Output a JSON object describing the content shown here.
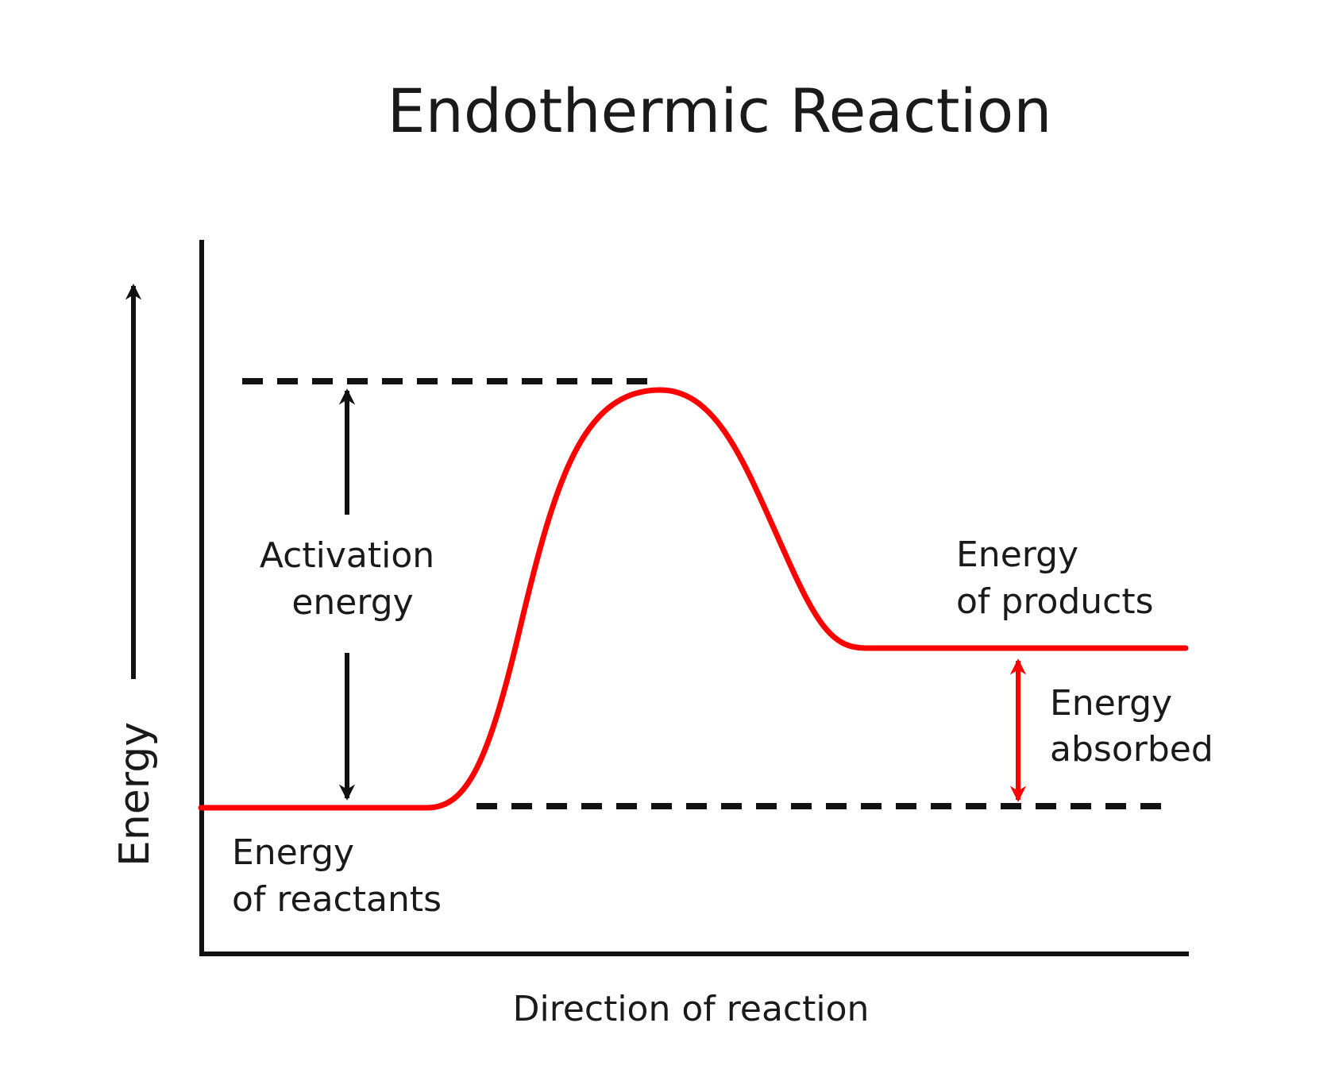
{
  "title": "Endothermic Reaction",
  "y_axis_label": "Energy",
  "x_axis_label": "Direction of reaction",
  "annotations": {
    "activation_energy": [
      "Activation",
      "energy"
    ],
    "energy_of_products": [
      "Energy",
      "of products"
    ],
    "energy_absorbed": [
      "Energy",
      "absorbed"
    ],
    "energy_of_reactants": [
      "Energy",
      "of reactants"
    ]
  },
  "colors": {
    "curve": "#ff0000",
    "absorbed_arrow": "#ff0000",
    "axes": "#111111",
    "dashed_lines": "#111111"
  }
}
